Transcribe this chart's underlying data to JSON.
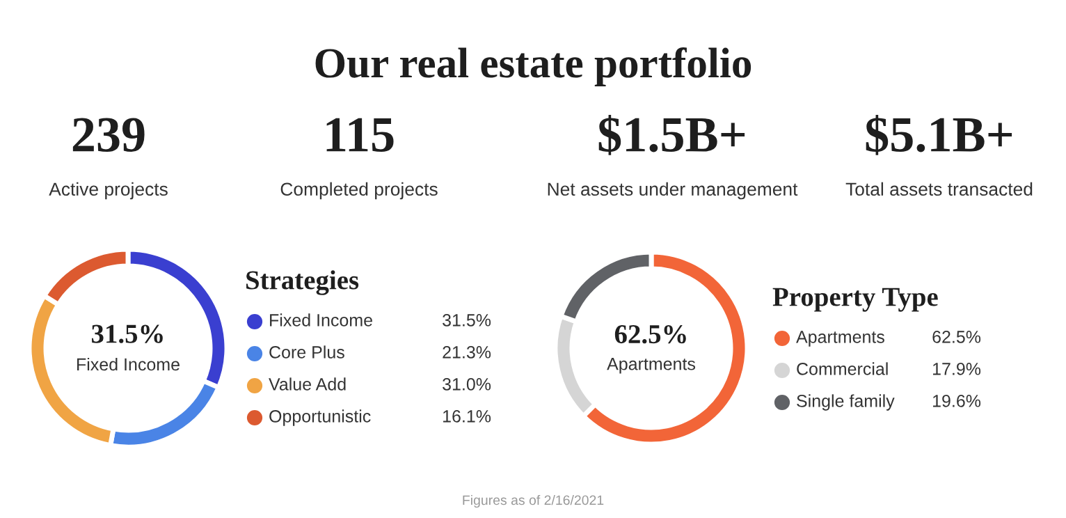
{
  "chart_data": [
    {
      "type": "other",
      "title": "Our real estate portfolio",
      "annotations": [
        "239",
        "Active projects",
        "115",
        "Completed projects",
        "$1.5B+",
        "Net assets under management",
        "$5.1B+",
        "Total assets transacted",
        "Figures as of 2/16/2021"
      ]
    },
    {
      "type": "donut",
      "title": "Strategies",
      "categories": [
        "Fixed Income",
        "Core Plus",
        "Value Add",
        "Opportunistic"
      ],
      "values": [
        31.5,
        21.3,
        31.0,
        16.1
      ],
      "colors": [
        "#3a3fd0",
        "#4a84e6",
        "#f0a444",
        "#dc5a30"
      ],
      "value_labels": [
        "31.5%",
        "21.3%",
        "31.0%",
        "16.1%"
      ],
      "legend": "right",
      "annotations": [
        "31.5%",
        "Fixed Income"
      ]
    },
    {
      "type": "donut",
      "title": "Property Type",
      "categories": [
        "Apartments",
        "Commercial",
        "Single family"
      ],
      "values": [
        62.5,
        17.9,
        19.6
      ],
      "colors": [
        "#f26538",
        "#d5d5d5",
        "#606266"
      ],
      "value_labels": [
        "62.5%",
        "17.9%",
        "19.6%"
      ],
      "legend": "right",
      "annotations": [
        "62.5%",
        "Apartments"
      ]
    }
  ]
}
